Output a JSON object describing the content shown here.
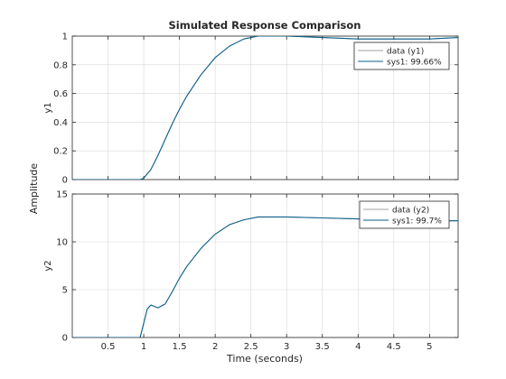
{
  "chart_data": {
    "title": "Simulated Response Comparison",
    "shared_xlabel": "Time (seconds)",
    "shared_ylabel": "Amplitude",
    "xlim": [
      0,
      5.4
    ],
    "xticks": [
      0.5,
      1,
      1.5,
      2,
      2.5,
      3,
      3.5,
      4,
      4.5,
      5
    ],
    "xtick_labels": [
      "0.5",
      "1",
      "1.5",
      "2",
      "2.5",
      "3",
      "3.5",
      "4",
      "4.5",
      "5"
    ],
    "colors": {
      "data": "#808080",
      "model": "#0b5f8a"
    },
    "panels": [
      {
        "type": "line",
        "ylabel": "y1",
        "ylim": [
          0,
          1
        ],
        "yticks": [
          0,
          0.2,
          0.4,
          0.6,
          0.8,
          1
        ],
        "ytick_labels": [
          "0",
          "0.2",
          "0.4",
          "0.6",
          "0.8",
          "1"
        ],
        "legend": [
          "data (y1)",
          "sys1: 99.66%"
        ],
        "legend_position": "top-right",
        "x": [
          0,
          0.5,
          0.95,
          1.0,
          1.1,
          1.2,
          1.3,
          1.4,
          1.5,
          1.6,
          1.8,
          2.0,
          2.2,
          2.4,
          2.6,
          2.8,
          3.0,
          3.5,
          4.0,
          4.5,
          5.0,
          5.4
        ],
        "series": [
          {
            "name": "data (y1)",
            "values": [
              0,
              0,
              0,
              0.01,
              0.07,
              0.17,
              0.28,
              0.39,
              0.49,
              0.58,
              0.73,
              0.85,
              0.93,
              0.98,
              1.0,
              1.0,
              1.0,
              0.99,
              0.98,
              0.98,
              0.98,
              0.99
            ]
          },
          {
            "name": "sys1: 99.66%",
            "values": [
              0,
              0,
              0,
              0.01,
              0.07,
              0.17,
              0.28,
              0.39,
              0.49,
              0.58,
              0.73,
              0.85,
              0.93,
              0.98,
              1.0,
              1.0,
              1.0,
              0.99,
              0.98,
              0.98,
              0.98,
              0.99
            ]
          }
        ]
      },
      {
        "type": "line",
        "ylabel": "y2",
        "ylim": [
          0,
          15
        ],
        "yticks": [
          0,
          5,
          10,
          15
        ],
        "ytick_labels": [
          "0",
          "5",
          "10",
          "15"
        ],
        "legend": [
          "data (y2)",
          "sys1: 99.7%"
        ],
        "legend_position": "top-right",
        "x": [
          0,
          0.5,
          0.95,
          1.0,
          1.05,
          1.1,
          1.2,
          1.3,
          1.4,
          1.5,
          1.6,
          1.8,
          2.0,
          2.2,
          2.4,
          2.6,
          2.8,
          3.0,
          3.5,
          4.0,
          4.5,
          5.0,
          5.4
        ],
        "series": [
          {
            "name": "data (y2)",
            "values": [
              0,
              0,
              0,
              1.5,
              3.0,
              3.4,
              3.1,
              3.5,
              4.8,
              6.2,
              7.4,
              9.3,
              10.8,
              11.8,
              12.3,
              12.6,
              12.6,
              12.6,
              12.5,
              12.4,
              12.3,
              12.2,
              12.2
            ]
          },
          {
            "name": "sys1: 99.7%",
            "values": [
              0,
              0,
              0,
              1.5,
              3.0,
              3.4,
              3.1,
              3.5,
              4.8,
              6.2,
              7.4,
              9.3,
              10.8,
              11.8,
              12.3,
              12.6,
              12.6,
              12.6,
              12.5,
              12.4,
              12.3,
              12.2,
              12.2
            ]
          }
        ]
      }
    ]
  }
}
